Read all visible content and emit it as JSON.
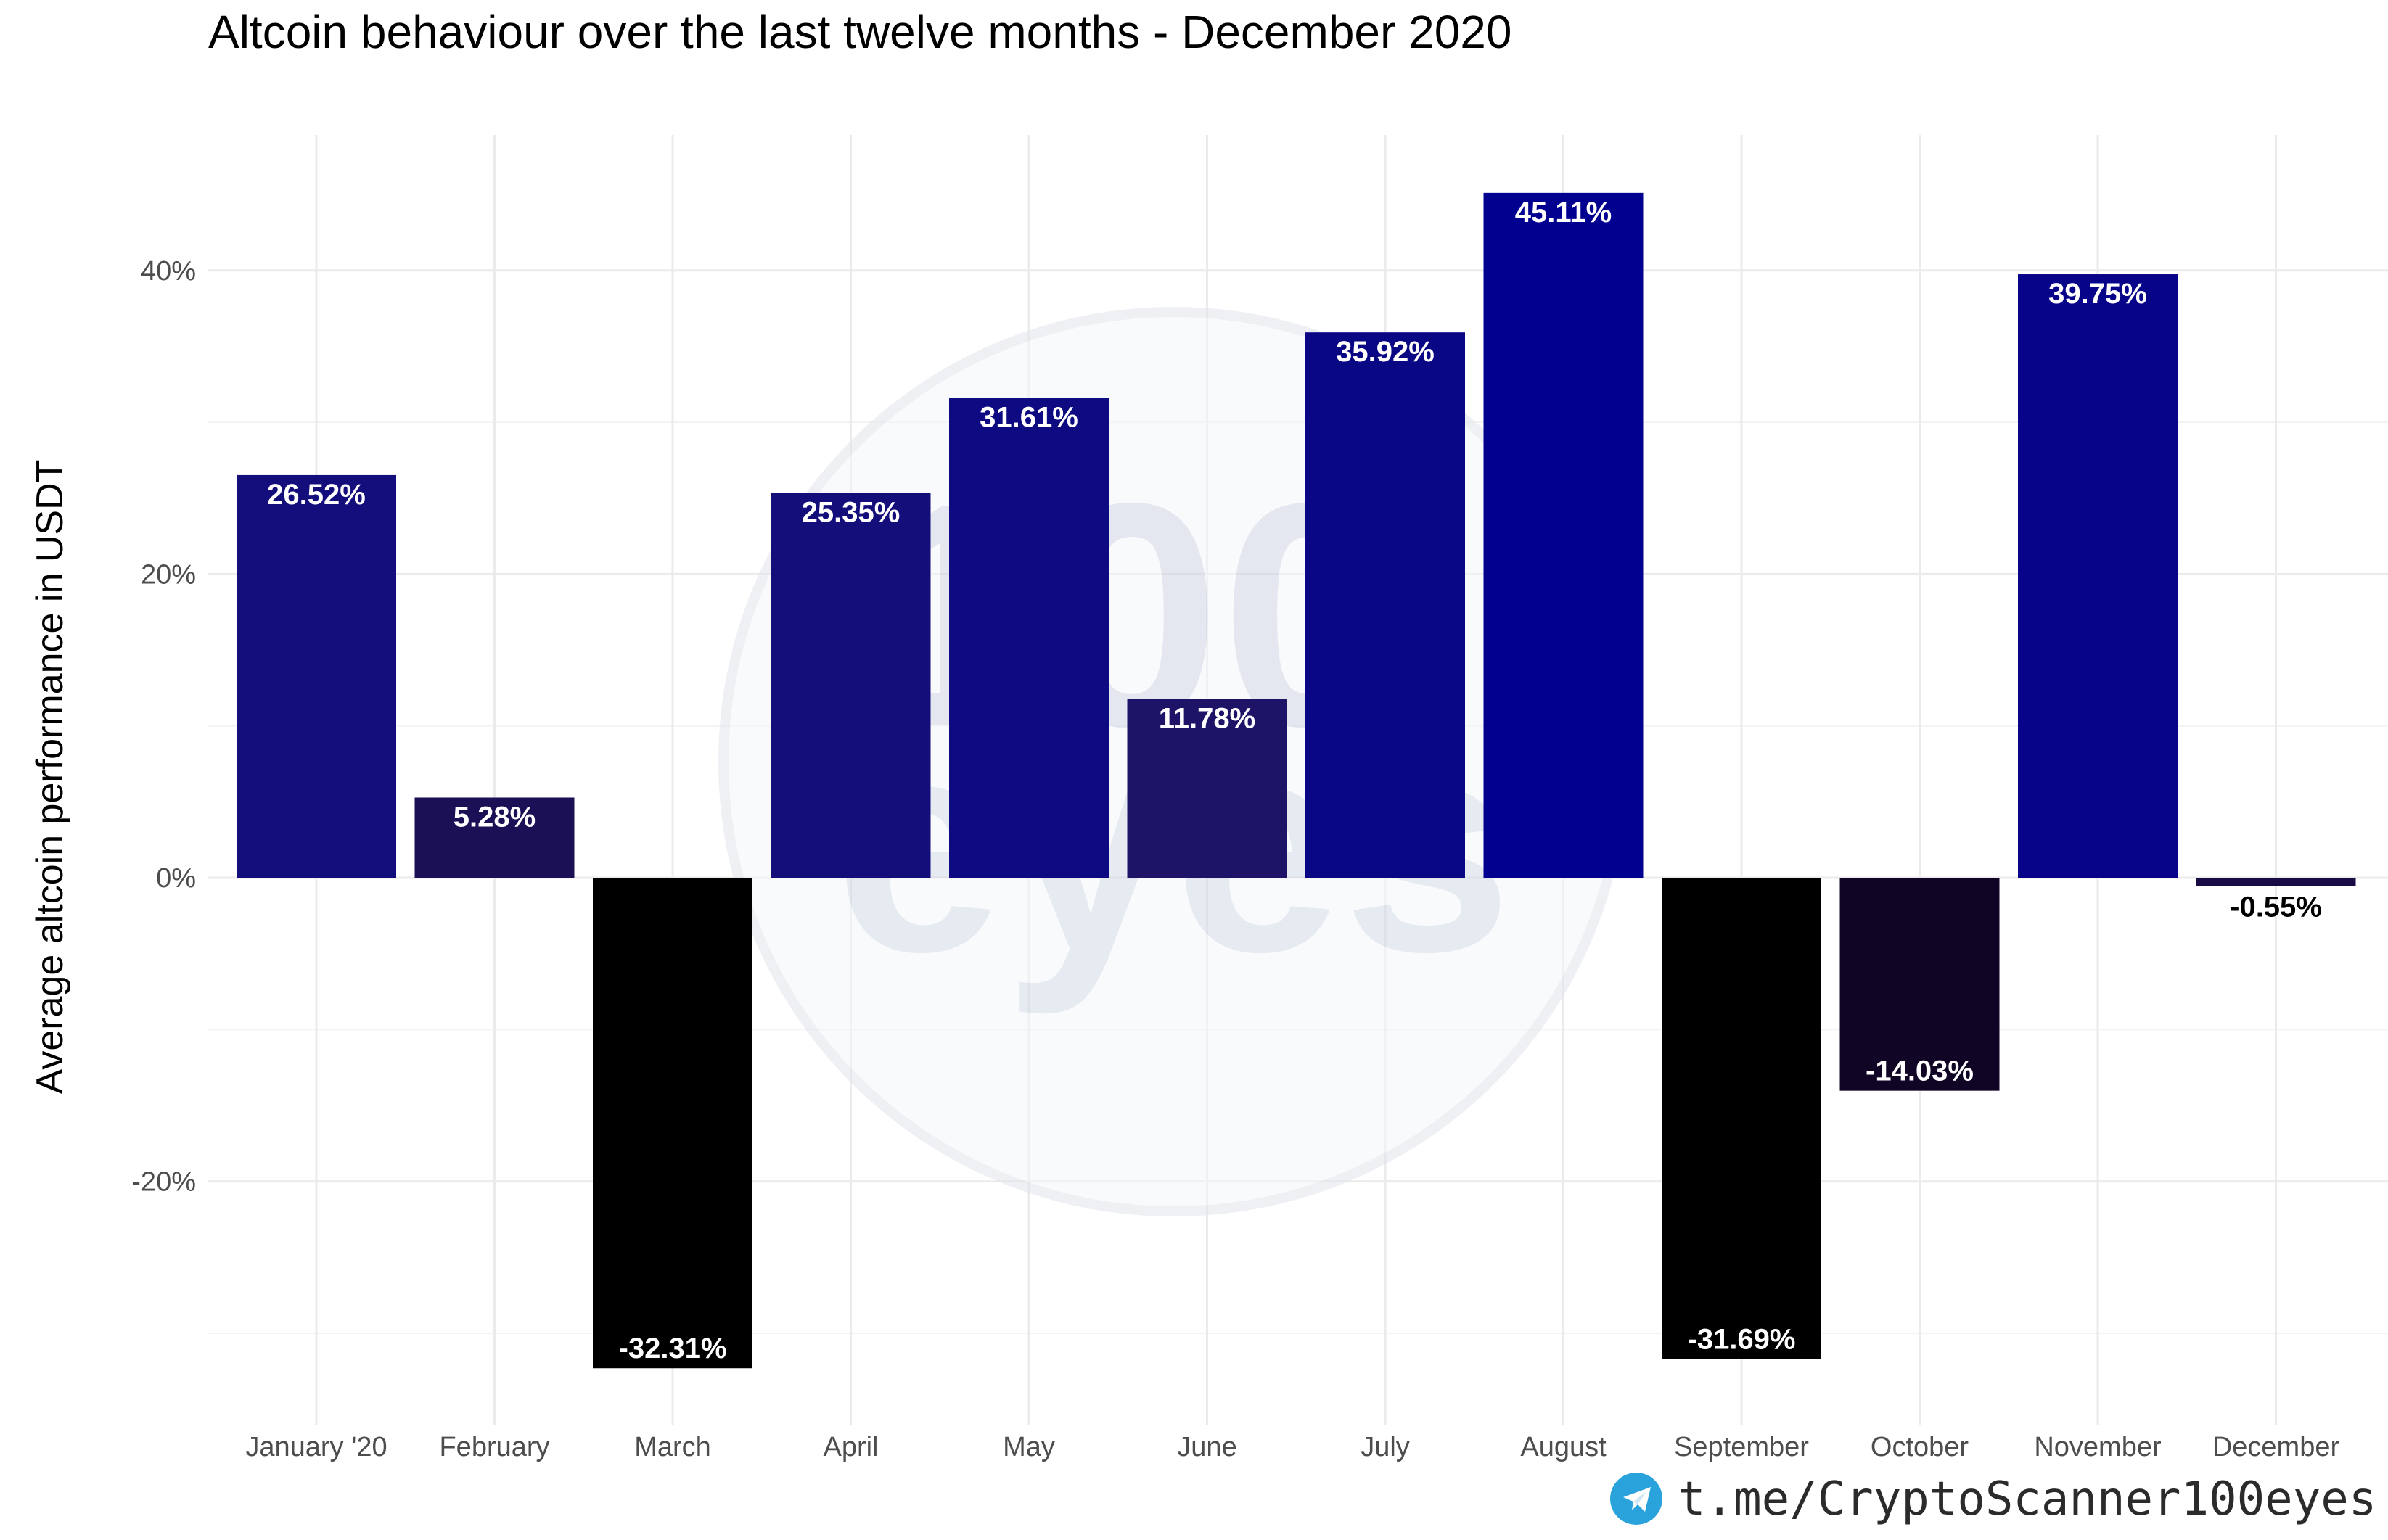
{
  "colors": {
    "bar_scale": [
      "#000000",
      "#1a0a3a",
      "#1e1670",
      "#02008e"
    ],
    "gridline": "#ebebeb",
    "watermark": "#d9dde8",
    "telegram": "#2aa3dd"
  },
  "footer": {
    "icon": "telegram-icon",
    "link_text": "t.me/CryptoScanner100eyes"
  },
  "watermark": {
    "number": "100",
    "word": "eyes"
  },
  "chart_data": {
    "type": "bar",
    "title": "Altcoin behaviour over the last twelve months - December 2020",
    "xlabel": "",
    "ylabel": "Average altcoin performance in USDT",
    "ylim": [
      -36,
      50
    ],
    "y_ticks": [
      -20,
      0,
      20,
      40
    ],
    "y_tick_labels": [
      "-20%",
      "0%",
      "20%",
      "40%"
    ],
    "grid": true,
    "legend": "none",
    "categories": [
      "January '20",
      "February",
      "March",
      "April",
      "May",
      "June",
      "July",
      "August",
      "September",
      "October",
      "November",
      "December"
    ],
    "values": [
      26.52,
      5.28,
      -32.31,
      25.35,
      31.61,
      11.78,
      35.92,
      45.11,
      -31.69,
      -14.03,
      39.75,
      -0.55
    ],
    "data_labels": [
      "26.52%",
      "5.28%",
      "-32.31%",
      "25.35%",
      "31.61%",
      "11.78%",
      "35.92%",
      "45.11%",
      "-31.69%",
      "-14.03%",
      "39.75%",
      "-0.55%"
    ]
  }
}
